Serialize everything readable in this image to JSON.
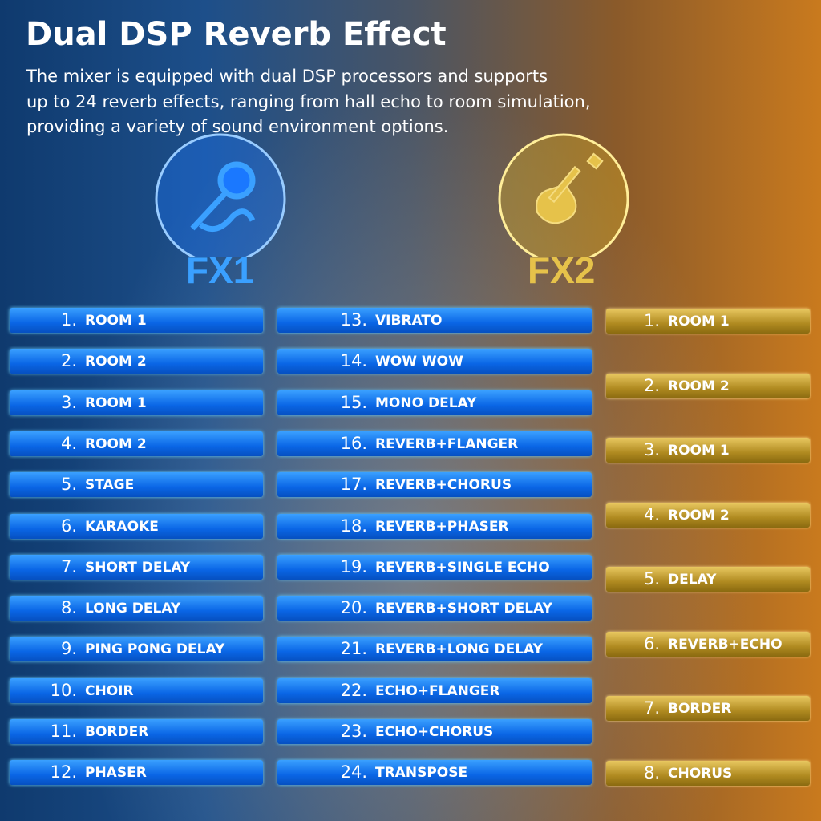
{
  "header": {
    "title": "Dual DSP Reverb Effect",
    "description": [
      "The mixer is equipped with dual DSP processors and supports",
      "up to 24 reverb effects, ranging from hall echo to room simulation,",
      "providing a variety of sound environment options."
    ]
  },
  "fx1": {
    "label": "FX1",
    "items": [
      {
        "number": "1.",
        "name": "ROOM 1"
      },
      {
        "number": "2.",
        "name": "ROOM 2"
      },
      {
        "number": "3.",
        "name": "ROOM 1"
      },
      {
        "number": "4.",
        "name": "ROOM 2"
      },
      {
        "number": "5.",
        "name": "STAGE"
      },
      {
        "number": "6.",
        "name": "KARAOKE"
      },
      {
        "number": "7.",
        "name": "SHORT DELAY"
      },
      {
        "number": "8.",
        "name": "LONG DELAY"
      },
      {
        "number": "9.",
        "name": "PING PONG DELAY"
      },
      {
        "number": "10.",
        "name": "CHOIR"
      },
      {
        "number": "11.",
        "name": "BORDER"
      },
      {
        "number": "12.",
        "name": "PHASER"
      },
      {
        "number": "13.",
        "name": "VIBRATO"
      },
      {
        "number": "14.",
        "name": "WOW WOW"
      },
      {
        "number": "15.",
        "name": "MONO DELAY"
      },
      {
        "number": "16.",
        "name": "REVERB+FLANGER"
      },
      {
        "number": "17.",
        "name": "REVERB+CHORUS"
      },
      {
        "number": "18.",
        "name": "REVERB+PHASER"
      },
      {
        "number": "19.",
        "name": "REVERB+SINGLE ECHO"
      },
      {
        "number": "20.",
        "name": "REVERB+SHORT DELAY"
      },
      {
        "number": "21.",
        "name": "REVERB+LONG DELAY"
      },
      {
        "number": "22.",
        "name": "ECHO+FLANGER"
      },
      {
        "number": "23.",
        "name": "ECHO+CHORUS"
      },
      {
        "number": "24.",
        "name": "TRANSPOSE"
      }
    ]
  },
  "fx2": {
    "label": "FX2",
    "items": [
      {
        "number": "1.",
        "name": "ROOM 1"
      },
      {
        "number": "2.",
        "name": "ROOM 2"
      },
      {
        "number": "3.",
        "name": "ROOM 1"
      },
      {
        "number": "4.",
        "name": "ROOM 2"
      },
      {
        "number": "5.",
        "name": "DELAY"
      },
      {
        "number": "6.",
        "name": "REVERB+ECHO"
      },
      {
        "number": "7.",
        "name": "BORDER"
      },
      {
        "number": "8.",
        "name": "CHORUS"
      }
    ]
  }
}
